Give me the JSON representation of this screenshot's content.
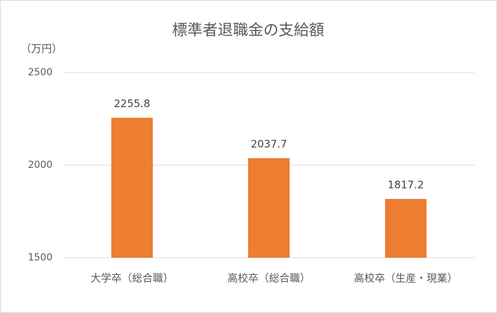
{
  "chart_data": {
    "type": "bar",
    "title": "標準者退職金の支給額",
    "y_label": "（万円）",
    "categories": [
      "大学卒（総合職）",
      "高校卒（総合職）",
      "高校卒（生産・現業）"
    ],
    "values": [
      2255.8,
      2037.7,
      1817.2
    ],
    "color": "#ed7d31",
    "ylim": [
      1500,
      2500
    ],
    "yticks": [
      1500,
      2000,
      2500
    ],
    "grid": true
  }
}
